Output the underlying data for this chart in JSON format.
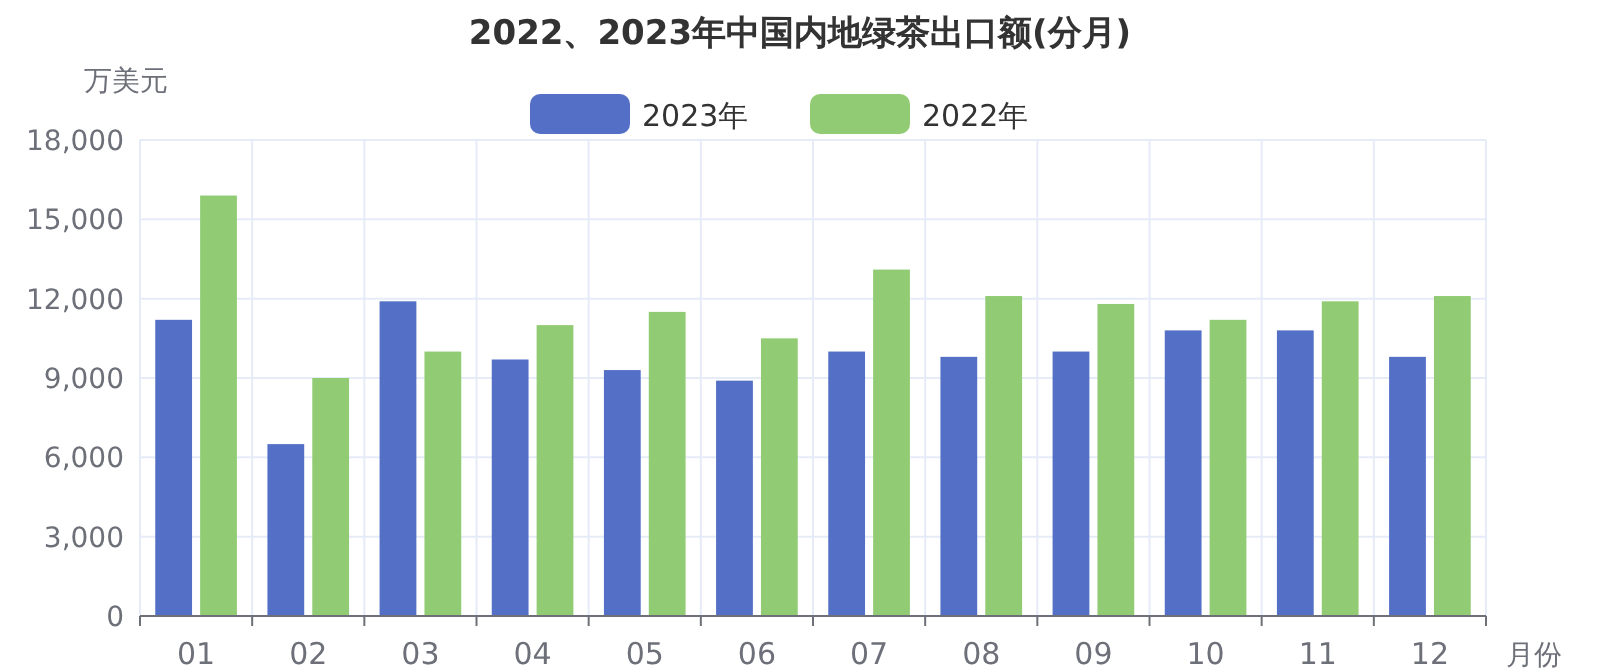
{
  "chart_data": {
    "type": "bar",
    "title": "2022、2023年中国内地绿茶出口额(分月)",
    "ylabel": "万美元",
    "xlabel": "月份",
    "categories": [
      "01",
      "02",
      "03",
      "04",
      "05",
      "06",
      "07",
      "08",
      "09",
      "10",
      "11",
      "12"
    ],
    "series": [
      {
        "name": "2023年",
        "color": "#5470c6",
        "values": [
          11200,
          6500,
          11900,
          9700,
          9300,
          8900,
          10000,
          9800,
          10000,
          10800,
          10800,
          9800
        ]
      },
      {
        "name": "2022年",
        "color": "#91cc75",
        "values": [
          15900,
          9000,
          10000,
          11000,
          11500,
          10500,
          13100,
          12100,
          11800,
          11200,
          11900,
          12100
        ]
      }
    ],
    "ylim": [
      0,
      18000
    ],
    "yticks": [
      {
        "value": 0,
        "label": "0"
      },
      {
        "value": 3000,
        "label": "3,000"
      },
      {
        "value": 6000,
        "label": "6,000"
      },
      {
        "value": 9000,
        "label": "9,000"
      },
      {
        "value": 12000,
        "label": "12,000"
      },
      {
        "value": 15000,
        "label": "15,000"
      },
      {
        "value": 18000,
        "label": "18,000"
      }
    ],
    "grid": true,
    "legend": "top"
  }
}
